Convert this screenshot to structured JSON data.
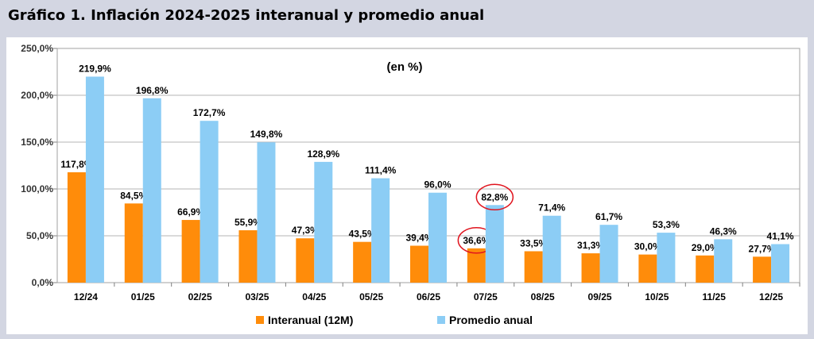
{
  "title": "Gráfico 1. Inflación 2024-2025 interanual y promedio anual",
  "chart_data": {
    "type": "bar",
    "subtitle": "(en %)",
    "categories": [
      "12/24",
      "01/25",
      "02/25",
      "03/25",
      "04/25",
      "05/25",
      "06/25",
      "07/25",
      "08/25",
      "09/25",
      "10/25",
      "11/25",
      "12/25"
    ],
    "series": [
      {
        "name": "Interanual (12M)",
        "color": "#ff8c0a",
        "values": [
          117.8,
          84.5,
          66.9,
          55.9,
          47.3,
          43.5,
          39.4,
          36.6,
          33.5,
          31.3,
          30.0,
          29.0,
          27.7
        ],
        "labels": [
          "117,8%",
          "84,5%",
          "66,9%",
          "55,9%",
          "47,3%",
          "43,5%",
          "39,4%",
          "36,6%",
          "33,5%",
          "31,3%",
          "30,0%",
          "29,0%",
          "27,7%"
        ]
      },
      {
        "name": "Promedio anual",
        "color": "#8ccdf5",
        "values": [
          219.9,
          196.8,
          172.7,
          149.8,
          128.9,
          111.4,
          96.0,
          82.8,
          71.4,
          61.7,
          53.3,
          46.3,
          41.1
        ],
        "labels": [
          "219,9%",
          "196,8%",
          "172,7%",
          "149,8%",
          "128,9%",
          "111,4%",
          "96,0%",
          "82,8%",
          "71,4%",
          "61,7%",
          "53,3%",
          "46,3%",
          "41,1%"
        ]
      }
    ],
    "ylim": [
      0,
      250
    ],
    "yticks": [
      0,
      50,
      100,
      150,
      200,
      250
    ],
    "ytick_labels": [
      "0,0%",
      "50,0%",
      "100,0%",
      "150,0%",
      "200,0%",
      "250,0%"
    ],
    "grid": true,
    "legend": "bottom",
    "highlighted_category": "07/25",
    "highlight_color": "#e0141e"
  }
}
